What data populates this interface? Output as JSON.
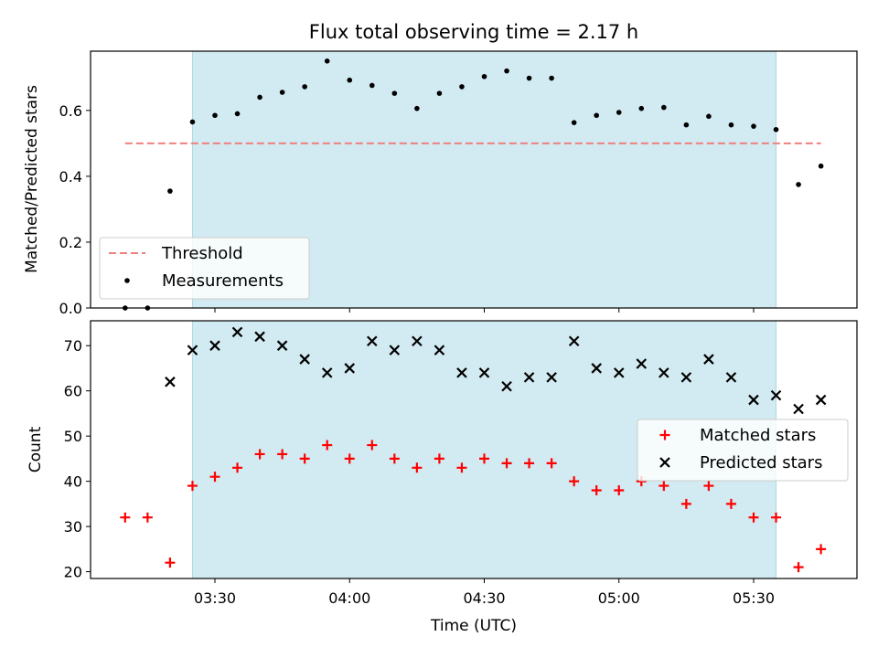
{
  "chart_data": [
    {
      "type": "scatter",
      "title": "Flux total observing time = 2.17 h",
      "ylabel": "Matched/Predicted stars",
      "xlabel": "",
      "ylim": [
        0,
        0.78
      ],
      "yticks": [
        0.0,
        0.2,
        0.4,
        0.6
      ],
      "ytick_labels": [
        "0.0",
        "0.2",
        "0.4",
        "0.6"
      ],
      "shaded_interval": [
        "03:25",
        "05:35"
      ],
      "shaded_color": "#add8e6",
      "threshold": {
        "name": "Threshold",
        "value": 0.5,
        "x_range": [
          "03:10",
          "05:45"
        ],
        "color": "#f08080"
      },
      "legend": {
        "placement": "lower-left",
        "entries": [
          "Threshold",
          "Measurements"
        ]
      },
      "series": [
        {
          "name": "Measurements",
          "marker": "dot",
          "color": "#000000",
          "x": [
            "03:10",
            "03:15",
            "03:20",
            "03:25",
            "03:30",
            "03:35",
            "03:40",
            "03:45",
            "03:50",
            "03:55",
            "04:00",
            "04:05",
            "04:10",
            "04:15",
            "04:20",
            "04:25",
            "04:30",
            "04:35",
            "04:40",
            "04:45",
            "04:50",
            "04:55",
            "05:00",
            "05:05",
            "05:10",
            "05:15",
            "05:20",
            "05:25",
            "05:30",
            "05:35",
            "05:40",
            "05:45"
          ],
          "values": [
            0.0,
            0.0,
            0.355,
            0.565,
            0.585,
            0.59,
            0.64,
            0.655,
            0.672,
            0.75,
            0.692,
            0.676,
            0.652,
            0.606,
            0.652,
            0.672,
            0.703,
            0.72,
            0.698,
            0.698,
            0.563,
            0.585,
            0.594,
            0.606,
            0.609,
            0.556,
            0.582,
            0.556,
            0.552,
            0.542,
            0.375,
            0.431
          ]
        }
      ]
    },
    {
      "type": "scatter",
      "title": "",
      "ylabel": "Count",
      "xlabel": "Time (UTC)",
      "ylim": [
        18.5,
        75.5
      ],
      "yticks": [
        20,
        30,
        40,
        50,
        60,
        70
      ],
      "ytick_labels": [
        "20",
        "30",
        "40",
        "50",
        "60",
        "70"
      ],
      "xticks": [
        "03:30",
        "04:00",
        "04:30",
        "05:00",
        "05:30"
      ],
      "shaded_interval": [
        "03:25",
        "05:35"
      ],
      "shaded_color": "#add8e6",
      "legend": {
        "placement": "right",
        "entries": [
          "Matched stars",
          "Predicted stars"
        ]
      },
      "series": [
        {
          "name": "Matched stars",
          "marker": "plus",
          "color": "#ff0000",
          "x": [
            "03:10",
            "03:15",
            "03:20",
            "03:25",
            "03:30",
            "03:35",
            "03:40",
            "03:45",
            "03:50",
            "03:55",
            "04:00",
            "04:05",
            "04:10",
            "04:15",
            "04:20",
            "04:25",
            "04:30",
            "04:35",
            "04:40",
            "04:45",
            "04:50",
            "04:55",
            "05:00",
            "05:05",
            "05:10",
            "05:15",
            "05:20",
            "05:25",
            "05:30",
            "05:35",
            "05:40",
            "05:45"
          ],
          "values": [
            32,
            32,
            22,
            39,
            41,
            43,
            46,
            46,
            45,
            48,
            45,
            48,
            45,
            43,
            45,
            43,
            45,
            44,
            44,
            44,
            40,
            38,
            38,
            40,
            39,
            35,
            39,
            35,
            32,
            32,
            21,
            25
          ]
        },
        {
          "name": "Predicted stars",
          "marker": "x",
          "color": "#000000",
          "x": [
            "03:20",
            "03:25",
            "03:30",
            "03:35",
            "03:40",
            "03:45",
            "03:50",
            "03:55",
            "04:00",
            "04:05",
            "04:10",
            "04:15",
            "04:20",
            "04:25",
            "04:30",
            "04:35",
            "04:40",
            "04:45",
            "04:50",
            "04:55",
            "05:00",
            "05:05",
            "05:10",
            "05:15",
            "05:20",
            "05:25",
            "05:30",
            "05:35",
            "05:40",
            "05:45"
          ],
          "values": [
            62,
            69,
            70,
            73,
            72,
            70,
            67,
            64,
            65,
            71,
            69,
            71,
            69,
            64,
            64,
            61,
            63,
            63,
            71,
            65,
            64,
            66,
            64,
            63,
            67,
            63,
            58,
            59,
            56,
            58
          ]
        }
      ]
    }
  ]
}
